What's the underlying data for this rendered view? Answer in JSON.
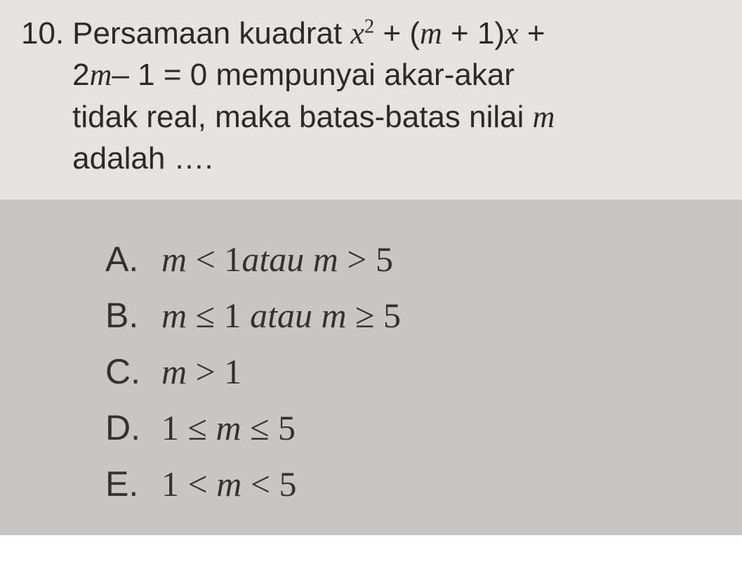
{
  "question": {
    "number": "10.",
    "line1_pre": "Persamaan kuadrat ",
    "line1_math_x": "x",
    "line1_math_sup": "2",
    "line1_math_mid": " + (",
    "line1_math_m": "m",
    "line1_math_post1": " + 1)",
    "line1_math_x2": "x",
    "line1_math_plus": " +",
    "line2_pre": "2",
    "line2_m": "m",
    "line2_mid": "– 1 = 0   mempunyai   akar-akar",
    "line3": "tidak real, maka batas-batas nilai ",
    "line3_m": "m",
    "line4": "adalah …."
  },
  "answers": {
    "A": {
      "label": "A.",
      "m1": "m",
      "op1": " < 1",
      "word": "atau ",
      "m2": "m",
      "op2": " > 5"
    },
    "B": {
      "label": "B.",
      "m1": "m",
      "op1": " ≤ 1 ",
      "word": "atau ",
      "m2": "m",
      "op2": " ≥ 5"
    },
    "C": {
      "label": "C.",
      "m1": "m",
      "op1": " > 1"
    },
    "D": {
      "label": "D.",
      "pre": "1 ≤ ",
      "m1": "m",
      "op1": " ≤ 5"
    },
    "E": {
      "label": "E.",
      "pre": "1 < ",
      "m1": "m",
      "op1": " < 5"
    }
  },
  "styling": {
    "question_bg": "#e6e2df",
    "answers_bg": "#c7c6c4",
    "question_fontsize": 44,
    "answers_fontsize": 50,
    "question_color": "#2a2a2a",
    "answers_color": "#333231"
  }
}
